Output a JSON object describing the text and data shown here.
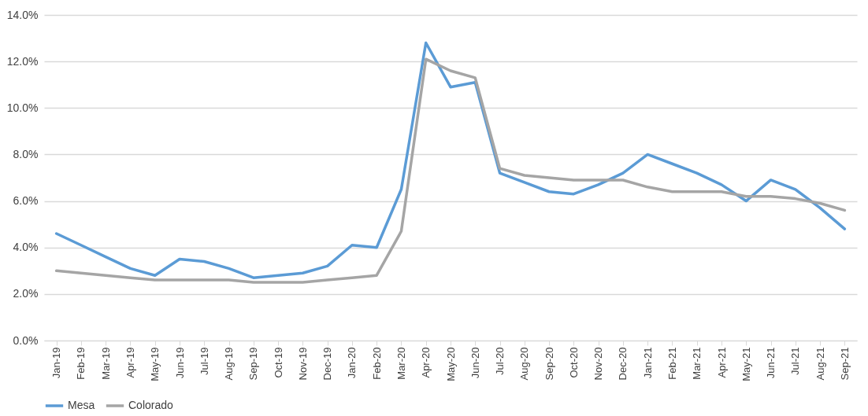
{
  "chart_data": {
    "type": "line",
    "categories": [
      "Jan-19",
      "Feb-19",
      "Mar-19",
      "Apr-19",
      "May-19",
      "Jun-19",
      "Jul-19",
      "Aug-19",
      "Sep-19",
      "Oct-19",
      "Nov-19",
      "Dec-19",
      "Jan-20",
      "Feb-20",
      "Mar-20",
      "Apr-20",
      "May-20",
      "Jun-20",
      "Jul-20",
      "Aug-20",
      "Sep-20",
      "Oct-20",
      "Nov-20",
      "Dec-20",
      "Jan-21",
      "Feb-21",
      "Mar-21",
      "Apr-21",
      "May-21",
      "Jun-21",
      "Jul-21",
      "Aug-21",
      "Sep-21"
    ],
    "series": [
      {
        "name": "Mesa",
        "color": "#5b9bd5",
        "values": [
          4.6,
          4.1,
          3.6,
          3.1,
          2.8,
          3.5,
          3.4,
          3.1,
          2.7,
          2.8,
          2.9,
          3.2,
          4.1,
          4.0,
          6.5,
          12.8,
          10.9,
          11.1,
          7.2,
          6.8,
          6.4,
          6.3,
          6.7,
          7.2,
          8.0,
          7.6,
          7.2,
          6.7,
          6.0,
          6.9,
          6.5,
          5.7,
          4.8
        ]
      },
      {
        "name": "Colorado",
        "color": "#a5a5a5",
        "values": [
          3.0,
          2.9,
          2.8,
          2.7,
          2.6,
          2.6,
          2.6,
          2.6,
          2.5,
          2.5,
          2.5,
          2.6,
          2.7,
          2.8,
          4.7,
          12.1,
          11.6,
          11.3,
          7.4,
          7.1,
          7.0,
          6.9,
          6.9,
          6.9,
          6.6,
          6.4,
          6.4,
          6.4,
          6.2,
          6.2,
          6.1,
          5.9,
          5.6
        ]
      }
    ],
    "ylim": [
      0,
      14
    ],
    "yticks": [
      {
        "value": 0,
        "label": "0.0%"
      },
      {
        "value": 2,
        "label": "2.0%"
      },
      {
        "value": 4,
        "label": "4.0%"
      },
      {
        "value": 6,
        "label": "6.0%"
      },
      {
        "value": 8,
        "label": "8.0%"
      },
      {
        "value": 10,
        "label": "10.0%"
      },
      {
        "value": 12,
        "label": "12.0%"
      },
      {
        "value": 14,
        "label": "14.0%"
      }
    ],
    "grid": "y",
    "legend": "bottom",
    "marker": "none",
    "line_style": "solid"
  }
}
